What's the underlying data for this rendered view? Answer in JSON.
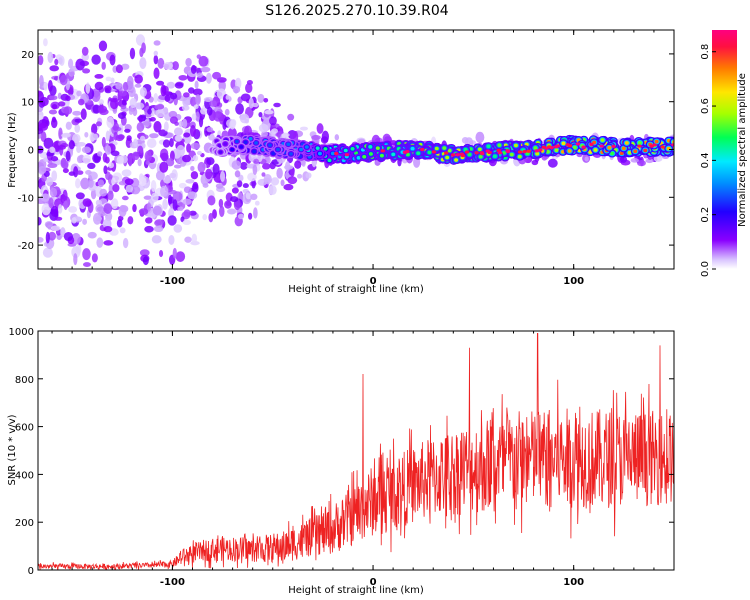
{
  "title": "S126.2025.270.10.39.R04",
  "colors": {
    "snr_line": "#ee2222",
    "colormap": [
      "#ffffff",
      "#9b6bff",
      "#7a00ff",
      "#3300ff",
      "#0044ff",
      "#00c8ff",
      "#00ff66",
      "#8cff00",
      "#ffd400",
      "#ff6a00",
      "#ff0044",
      "#ff0080"
    ]
  },
  "chart_data": [
    {
      "id": "spectrogram",
      "type": "heatmap",
      "xlabel": "Height of straight line (km)",
      "ylabel": "Frequency (Hz)",
      "xlim": [
        -167,
        150
      ],
      "ylim": [
        -25,
        25
      ],
      "xticks": [
        "-100",
        "0",
        "100"
      ],
      "xtick_values": [
        -100,
        0,
        100
      ],
      "yticks": [
        "20",
        "10",
        "0",
        "-10",
        "-20"
      ],
      "ytick_values": [
        20,
        10,
        0,
        -10,
        -20
      ],
      "colorbar": {
        "label": "Normalized spectral amplitude",
        "range": [
          0,
          0.88
        ],
        "ticks": [
          "0.0",
          "0.2",
          "0.4",
          "0.6",
          "0.8"
        ],
        "tick_values": [
          0,
          0.2,
          0.4,
          0.6,
          0.8
        ]
      },
      "description_bins": {
        "x": [
          -160,
          -130,
          -100,
          -80,
          -60,
          -40,
          -20,
          0,
          20,
          40,
          60,
          80,
          100,
          120,
          145
        ],
        "signal_freq_hz": [
          0,
          0,
          0,
          0.5,
          1,
          0,
          -1,
          -0.5,
          0,
          -1,
          -0.5,
          0,
          1,
          0.5,
          0.5
        ],
        "signal_amplitude": [
          0.1,
          0.1,
          0.12,
          0.15,
          0.3,
          0.3,
          0.45,
          0.5,
          0.55,
          0.6,
          0.6,
          0.65,
          0.7,
          0.72,
          0.75
        ],
        "noise_spread_hz": [
          25,
          25,
          25,
          20,
          15,
          8,
          4,
          3,
          3,
          3,
          3,
          3,
          3,
          3,
          3
        ]
      }
    },
    {
      "id": "snr",
      "type": "line",
      "xlabel": "Height of straight line (km)",
      "ylabel": "SNR (10 * v/v)",
      "xlim": [
        -167,
        150
      ],
      "ylim": [
        0,
        1000
      ],
      "xticks": [
        "-100",
        "0",
        "100"
      ],
      "xtick_values": [
        -100,
        0,
        100
      ],
      "yticks": [
        "1000",
        "800",
        "600",
        "400",
        "200",
        "0"
      ],
      "ytick_values": [
        1000,
        800,
        600,
        400,
        200,
        0
      ],
      "envelope": {
        "x": [
          -167,
          -130,
          -110,
          -100,
          -95,
          -85,
          -75,
          -60,
          -45,
          -30,
          -20,
          -10,
          0,
          15,
          30,
          50,
          70,
          90,
          110,
          130,
          150
        ],
        "mean": [
          15,
          15,
          20,
          25,
          55,
          80,
          90,
          85,
          95,
          140,
          170,
          230,
          290,
          340,
          390,
          430,
          460,
          470,
          465,
          470,
          470
        ],
        "spread": [
          15,
          15,
          15,
          20,
          45,
          60,
          70,
          70,
          90,
          110,
          140,
          170,
          200,
          210,
          230,
          260,
          280,
          280,
          280,
          270,
          260
        ]
      },
      "notable_peaks": [
        {
          "x": -5,
          "y": 820
        },
        {
          "x": 48,
          "y": 930
        },
        {
          "x": 82,
          "y": 990
        },
        {
          "x": 143,
          "y": 940
        }
      ]
    }
  ]
}
